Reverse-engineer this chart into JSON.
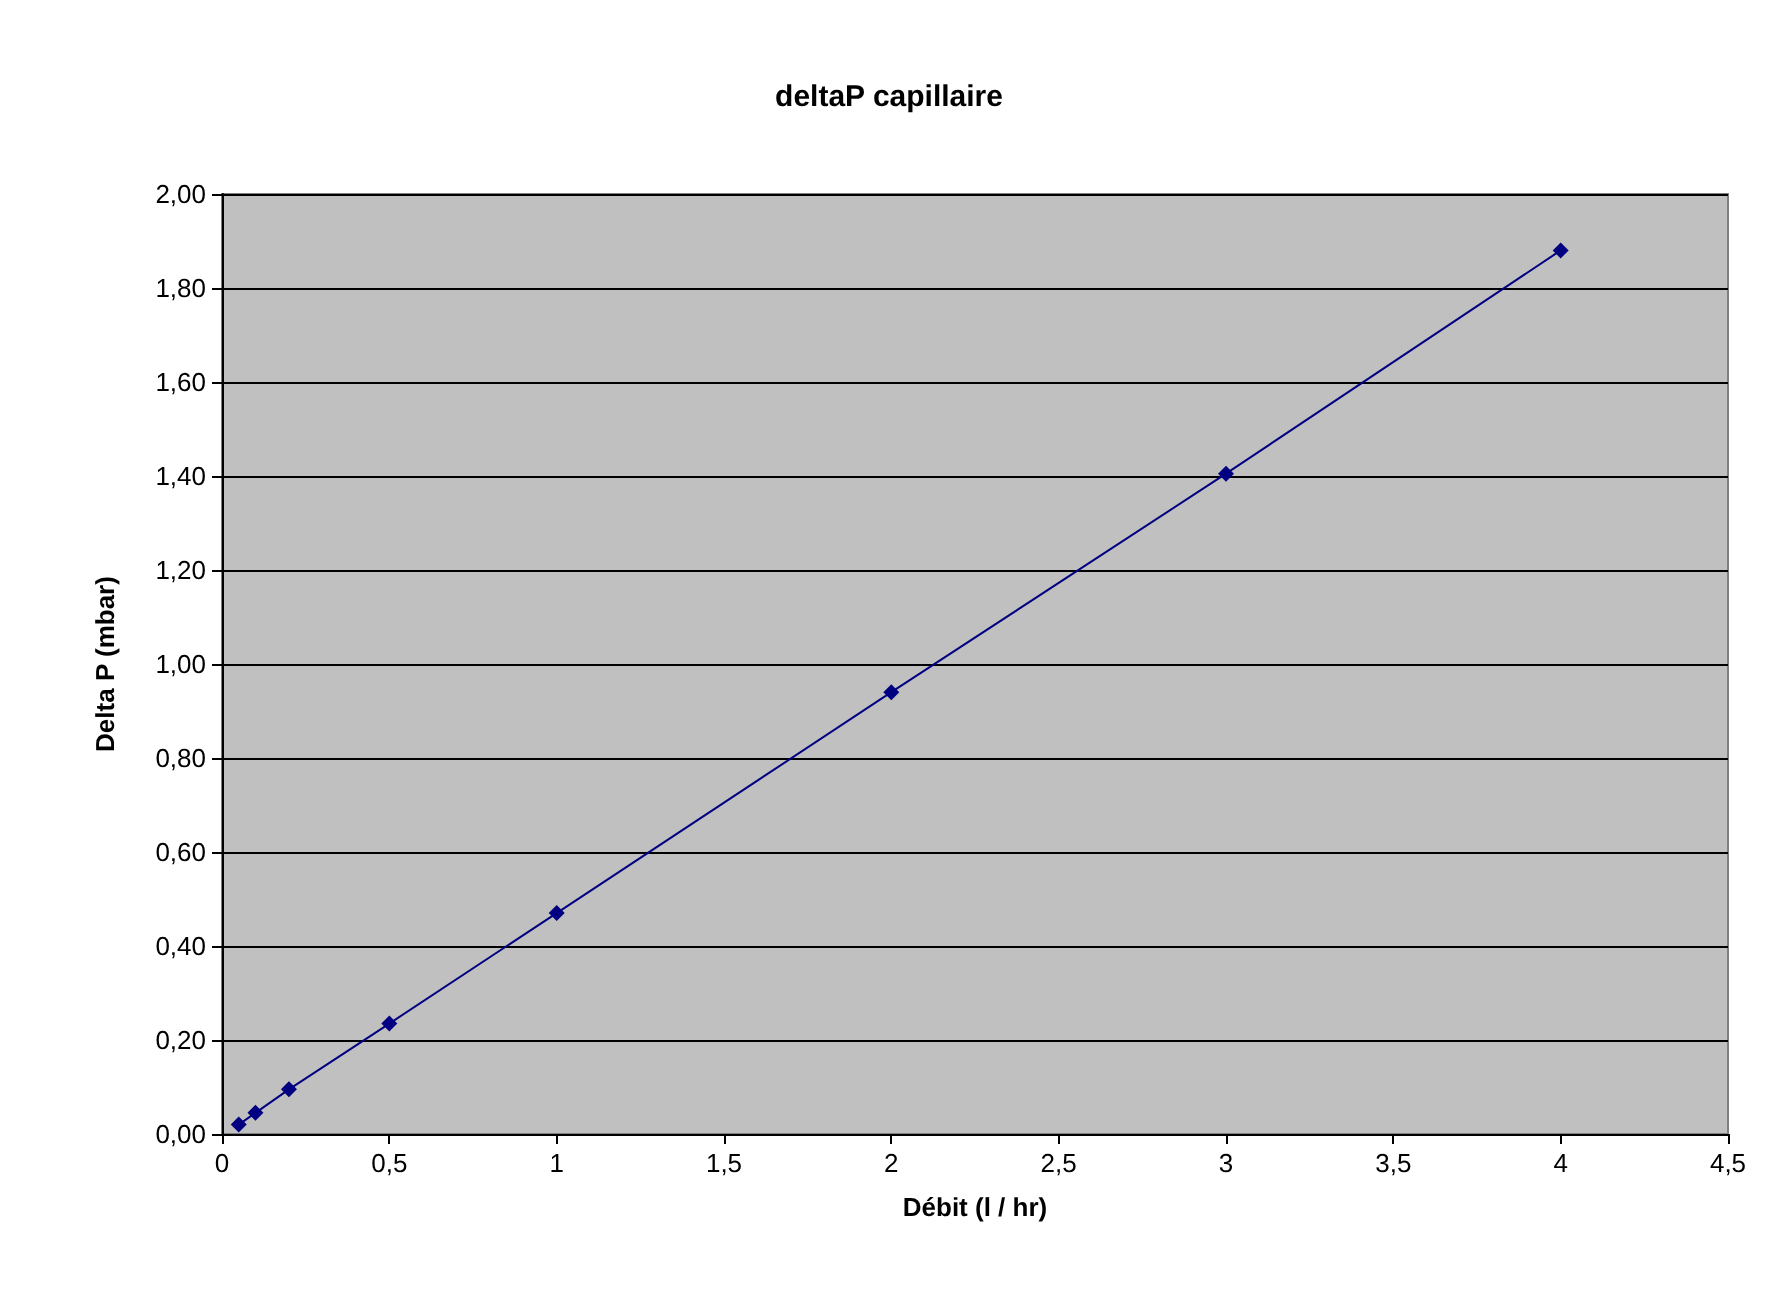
{
  "chart_data": {
    "type": "line",
    "title": "deltaP capillaire",
    "xlabel": "Débit (l / hr)",
    "ylabel": "Delta P (mbar)",
    "x": [
      0.05,
      0.1,
      0.2,
      0.5,
      1,
      2,
      3,
      4
    ],
    "series": [
      {
        "color": "#000080",
        "values": [
          0.02,
          0.045,
          0.095,
          0.235,
          0.47,
          0.94,
          1.405,
          1.88
        ]
      }
    ],
    "xlim": [
      0,
      4.5
    ],
    "ylim": [
      0,
      2
    ],
    "xticks": [
      0,
      {
        "value": 0.5,
        "label": "0,5"
      },
      1,
      {
        "value": 1.5,
        "label": "1,5"
      },
      2,
      {
        "value": 2.5,
        "label": "2,5"
      },
      3,
      {
        "value": 3.5,
        "label": "3,5"
      },
      4,
      {
        "value": 4.5,
        "label": "4,5"
      }
    ],
    "yticks": [
      {
        "value": 0,
        "label": "0,00"
      },
      {
        "value": 0.2,
        "label": "0,20"
      },
      {
        "value": 0.4,
        "label": "0,40"
      },
      {
        "value": 0.6,
        "label": "0,60"
      },
      {
        "value": 0.8,
        "label": "0,80"
      },
      {
        "value": 1,
        "label": "1,00"
      },
      {
        "value": 1.2,
        "label": "1,20"
      },
      {
        "value": 1.4,
        "label": "1,40"
      },
      {
        "value": 1.6,
        "label": "1,60"
      },
      {
        "value": 1.8,
        "label": "1,80"
      },
      {
        "value": 2,
        "label": "2,00"
      }
    ],
    "grid": "y",
    "marker": "diamond",
    "line_style": "solid"
  }
}
